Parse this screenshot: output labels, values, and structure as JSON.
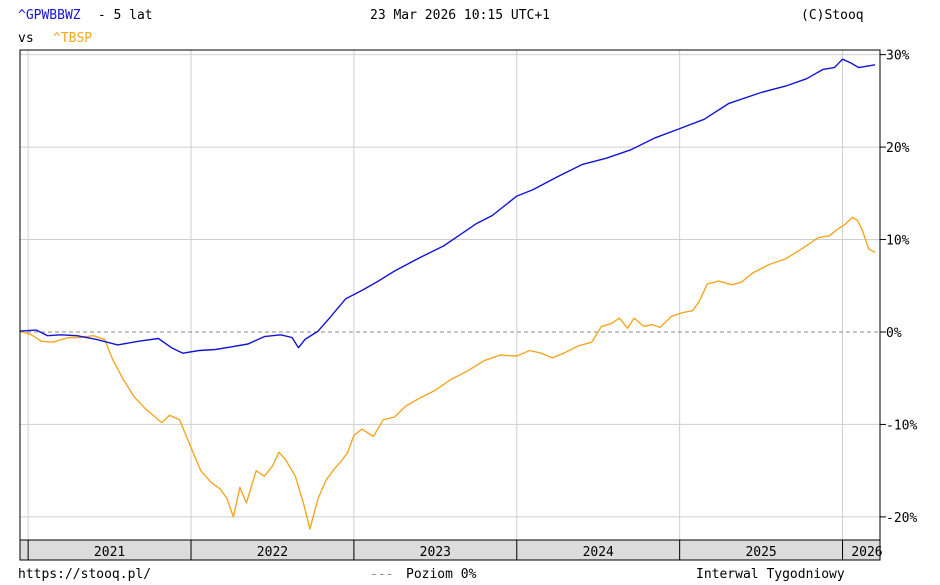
{
  "header": {
    "symbol_primary": "^GPWBBWZ",
    "period": " - 5 lat",
    "timestamp": "23 Mar 2026 10:15 UTC+1",
    "copyright": "(C)Stooq",
    "vs_label": "vs",
    "symbol_secondary": "^TBSP"
  },
  "footer": {
    "url": "https://stooq.pl/",
    "zero_level_label": "Poziom 0%",
    "interval_label": "Interwal Tygodniowy"
  },
  "colors": {
    "primary": "#1414d2",
    "secondary": "#f5a623",
    "grid": "#cfcfcf",
    "zero_line": "#888888",
    "axis_band": "#dcdcdc"
  },
  "chart_data": {
    "type": "line",
    "title": "^GPWBBWZ - 5 lat vs ^TBSP",
    "y_unit": "%",
    "ylim": [
      -22.5,
      30.5
    ],
    "xlim": [
      2020.95,
      2026.23
    ],
    "y_ticks": [
      {
        "value": 30,
        "label": "30%"
      },
      {
        "value": 20,
        "label": "20%"
      },
      {
        "value": 10,
        "label": "10%"
      },
      {
        "value": 0,
        "label": "0%"
      },
      {
        "value": -10,
        "label": "-10%"
      },
      {
        "value": -20,
        "label": "-20%"
      }
    ],
    "x_grid": [
      2021.0,
      2022.0,
      2023.0,
      2024.0,
      2025.0,
      2026.0
    ],
    "x_labels": [
      {
        "x": 2021.5,
        "label": "2021"
      },
      {
        "x": 2022.5,
        "label": "2022"
      },
      {
        "x": 2023.5,
        "label": "2023"
      },
      {
        "x": 2024.5,
        "label": "2024"
      },
      {
        "x": 2025.5,
        "label": "2025"
      },
      {
        "x": 2026.15,
        "label": "2026"
      }
    ],
    "grid": true,
    "zero_line": true,
    "series": [
      {
        "name": "^GPWBBWZ",
        "color": "#1414d2",
        "points": [
          [
            2020.95,
            0.1
          ],
          [
            2021.05,
            0.2
          ],
          [
            2021.12,
            -0.4
          ],
          [
            2021.2,
            -0.3
          ],
          [
            2021.3,
            -0.4
          ],
          [
            2021.42,
            -0.8
          ],
          [
            2021.55,
            -1.4
          ],
          [
            2021.68,
            -1.0
          ],
          [
            2021.8,
            -0.7
          ],
          [
            2021.88,
            -1.7
          ],
          [
            2021.95,
            -2.3
          ],
          [
            2022.05,
            -2.0
          ],
          [
            2022.15,
            -1.9
          ],
          [
            2022.25,
            -1.6
          ],
          [
            2022.35,
            -1.3
          ],
          [
            2022.45,
            -0.5
          ],
          [
            2022.55,
            -0.3
          ],
          [
            2022.62,
            -0.6
          ],
          [
            2022.66,
            -1.7
          ],
          [
            2022.7,
            -0.8
          ],
          [
            2022.78,
            0.1
          ],
          [
            2022.85,
            1.5
          ],
          [
            2022.95,
            3.6
          ],
          [
            2023.05,
            4.5
          ],
          [
            2023.15,
            5.5
          ],
          [
            2023.25,
            6.6
          ],
          [
            2023.4,
            8.0
          ],
          [
            2023.55,
            9.3
          ],
          [
            2023.65,
            10.5
          ],
          [
            2023.75,
            11.7
          ],
          [
            2023.85,
            12.6
          ],
          [
            2024.0,
            14.7
          ],
          [
            2024.1,
            15.4
          ],
          [
            2024.25,
            16.8
          ],
          [
            2024.4,
            18.1
          ],
          [
            2024.55,
            18.8
          ],
          [
            2024.7,
            19.7
          ],
          [
            2024.85,
            21.0
          ],
          [
            2025.0,
            22.0
          ],
          [
            2025.15,
            23.0
          ],
          [
            2025.3,
            24.7
          ],
          [
            2025.5,
            25.9
          ],
          [
            2025.65,
            26.6
          ],
          [
            2025.78,
            27.4
          ],
          [
            2025.88,
            28.4
          ],
          [
            2025.95,
            28.6
          ],
          [
            2026.0,
            29.5
          ],
          [
            2026.05,
            29.1
          ],
          [
            2026.1,
            28.6
          ],
          [
            2026.2,
            28.9
          ]
        ]
      },
      {
        "name": "^TBSP",
        "color": "#f5a623",
        "points": [
          [
            2020.95,
            0.1
          ],
          [
            2021.02,
            -0.3
          ],
          [
            2021.08,
            -1.0
          ],
          [
            2021.15,
            -1.1
          ],
          [
            2021.25,
            -0.6
          ],
          [
            2021.32,
            -0.6
          ],
          [
            2021.4,
            -0.4
          ],
          [
            2021.47,
            -0.8
          ],
          [
            2021.52,
            -3.0
          ],
          [
            2021.58,
            -5.0
          ],
          [
            2021.65,
            -7.0
          ],
          [
            2021.72,
            -8.3
          ],
          [
            2021.78,
            -9.2
          ],
          [
            2021.82,
            -9.8
          ],
          [
            2021.87,
            -9.0
          ],
          [
            2021.93,
            -9.5
          ],
          [
            2022.0,
            -12.5
          ],
          [
            2022.06,
            -15.0
          ],
          [
            2022.12,
            -16.2
          ],
          [
            2022.18,
            -17.0
          ],
          [
            2022.22,
            -18.0
          ],
          [
            2022.26,
            -20.0
          ],
          [
            2022.3,
            -16.8
          ],
          [
            2022.34,
            -18.5
          ],
          [
            2022.4,
            -15.0
          ],
          [
            2022.45,
            -15.6
          ],
          [
            2022.5,
            -14.5
          ],
          [
            2022.54,
            -13.0
          ],
          [
            2022.58,
            -13.8
          ],
          [
            2022.64,
            -15.6
          ],
          [
            2022.69,
            -18.5
          ],
          [
            2022.73,
            -21.3
          ],
          [
            2022.78,
            -18.0
          ],
          [
            2022.83,
            -16.0
          ],
          [
            2022.88,
            -14.8
          ],
          [
            2022.92,
            -14.0
          ],
          [
            2022.96,
            -13.1
          ],
          [
            2023.0,
            -11.2
          ],
          [
            2023.05,
            -10.5
          ],
          [
            2023.12,
            -11.3
          ],
          [
            2023.18,
            -9.5
          ],
          [
            2023.25,
            -9.2
          ],
          [
            2023.32,
            -8.0
          ],
          [
            2023.4,
            -7.2
          ],
          [
            2023.5,
            -6.3
          ],
          [
            2023.6,
            -5.1
          ],
          [
            2023.7,
            -4.2
          ],
          [
            2023.8,
            -3.1
          ],
          [
            2023.9,
            -2.5
          ],
          [
            2024.0,
            -2.6
          ],
          [
            2024.08,
            -2.0
          ],
          [
            2024.15,
            -2.3
          ],
          [
            2024.22,
            -2.8
          ],
          [
            2024.3,
            -2.2
          ],
          [
            2024.38,
            -1.5
          ],
          [
            2024.46,
            -1.1
          ],
          [
            2024.52,
            0.6
          ],
          [
            2024.58,
            0.9
          ],
          [
            2024.63,
            1.5
          ],
          [
            2024.68,
            0.4
          ],
          [
            2024.72,
            1.5
          ],
          [
            2024.78,
            0.6
          ],
          [
            2024.83,
            0.8
          ],
          [
            2024.88,
            0.5
          ],
          [
            2024.95,
            1.7
          ],
          [
            2025.02,
            2.1
          ],
          [
            2025.08,
            2.3
          ],
          [
            2025.12,
            3.3
          ],
          [
            2025.17,
            5.2
          ],
          [
            2025.24,
            5.5
          ],
          [
            2025.32,
            5.1
          ],
          [
            2025.38,
            5.4
          ],
          [
            2025.45,
            6.4
          ],
          [
            2025.55,
            7.3
          ],
          [
            2025.65,
            7.9
          ],
          [
            2025.75,
            9.0
          ],
          [
            2025.85,
            10.2
          ],
          [
            2025.92,
            10.4
          ],
          [
            2025.96,
            11.0
          ],
          [
            2026.02,
            11.7
          ],
          [
            2026.06,
            12.4
          ],
          [
            2026.09,
            12.1
          ],
          [
            2026.12,
            11.1
          ],
          [
            2026.16,
            9.0
          ],
          [
            2026.2,
            8.6
          ]
        ]
      }
    ]
  }
}
